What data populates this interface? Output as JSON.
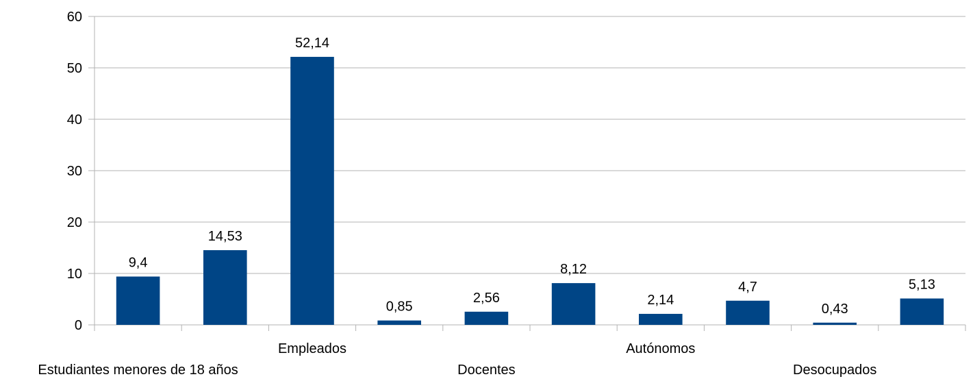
{
  "chart_data": {
    "type": "bar",
    "title": "",
    "xlabel": "",
    "ylabel": "",
    "ylim": [
      0,
      60
    ],
    "yticks": [
      0,
      10,
      20,
      30,
      40,
      50,
      60
    ],
    "grid": true,
    "legend": "none",
    "bar_color": "#004586",
    "grid_color": "#b3b3b3",
    "values": [
      9.4,
      14.53,
      52.14,
      0.85,
      2.56,
      8.12,
      2.14,
      4.7,
      0.43,
      5.13
    ],
    "value_labels": [
      "9,4",
      "14,53",
      "52,14",
      "0,85",
      "2,56",
      "8,12",
      "2,14",
      "4,7",
      "0,43",
      "5,13"
    ],
    "categories": [
      "Estudiantes menores de 18 años",
      "",
      "Empleados",
      "",
      "Docentes",
      "",
      "Autónomos",
      "",
      "Desocupados",
      ""
    ]
  }
}
